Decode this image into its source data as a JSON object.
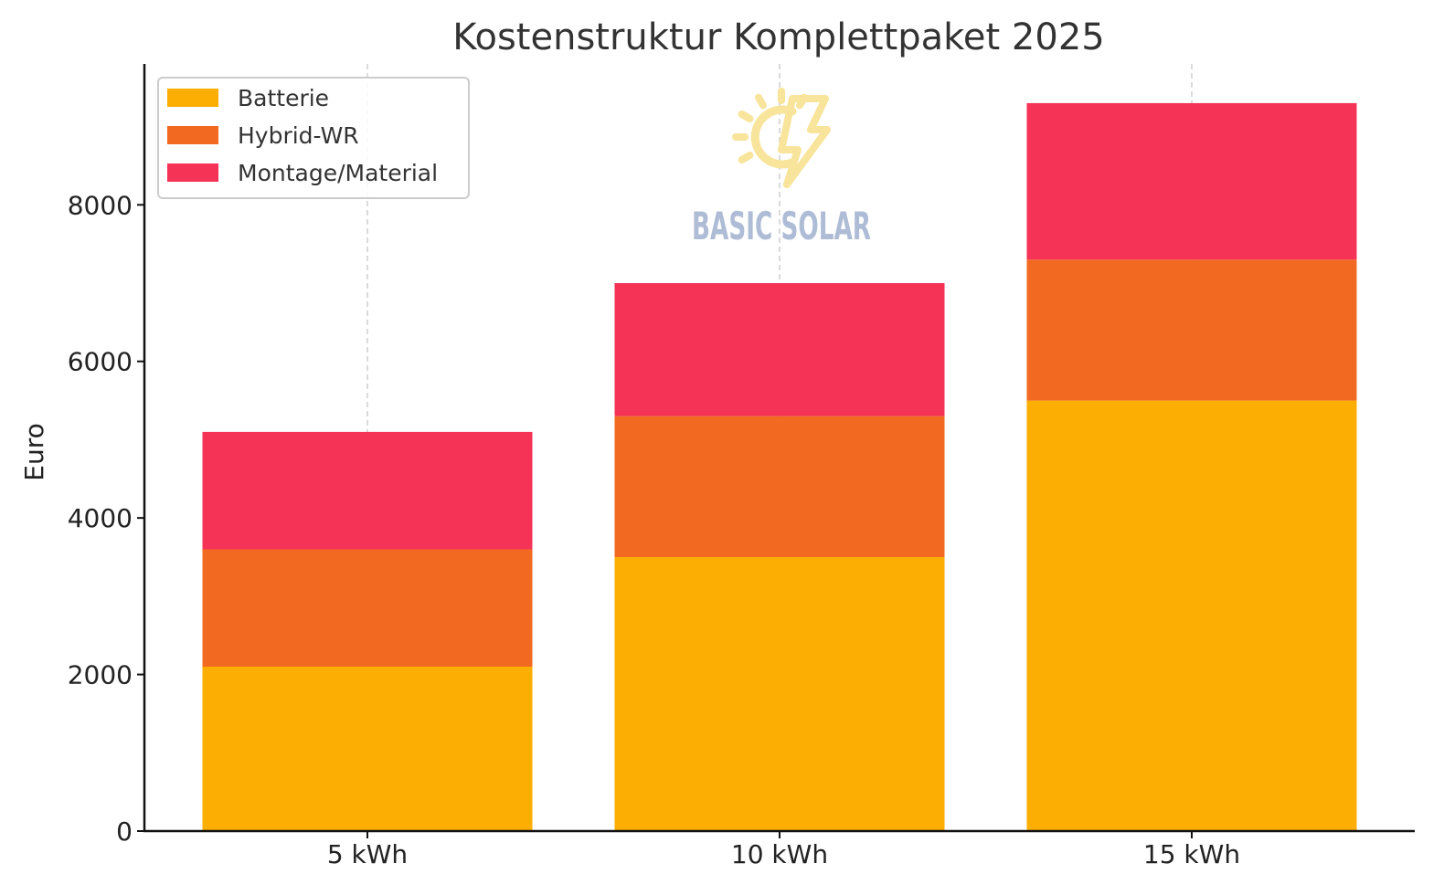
{
  "chart_data": {
    "type": "bar",
    "stacked": true,
    "title": "Kostenstruktur Komplettpaket 2025",
    "xlabel": "",
    "ylabel": "Euro",
    "categories": [
      "5 kWh",
      "10 kWh",
      "15 kWh"
    ],
    "series": [
      {
        "name": "Batterie",
        "values": [
          2100,
          3500,
          5500
        ],
        "color": "#FDAE03"
      },
      {
        "name": "Hybrid-WR",
        "values": [
          1500,
          1800,
          1800
        ],
        "color": "#F26A21"
      },
      {
        "name": "Montage/Material",
        "values": [
          1500,
          1700,
          2000
        ],
        "color": "#F53357"
      }
    ],
    "ylim": [
      0,
      9800
    ],
    "yticks": [
      0,
      2000,
      4000,
      6000,
      8000
    ],
    "grid": {
      "x": true,
      "y": false,
      "style": "dashed"
    },
    "legend": {
      "position": "top-left"
    }
  },
  "watermark": {
    "text": "BASIC SOLAR",
    "sun_color": "#F8E49A",
    "text_color": "#AEBCD6"
  }
}
